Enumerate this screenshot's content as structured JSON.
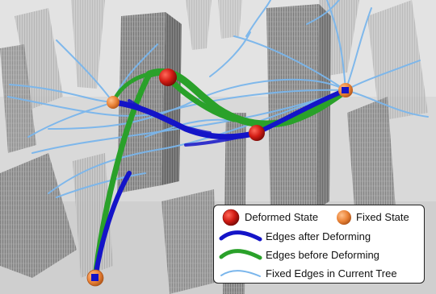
{
  "legend": {
    "deformed_state": "Deformed State",
    "fixed_state": "Fixed State",
    "edges_after": "Edges after Deforming",
    "edges_before": "Edges before Deforming",
    "fixed_edges": "Fixed Edges in Current Tree"
  },
  "colors": {
    "deformed_state": "#c8201a",
    "fixed_state": "#e8843a",
    "edges_after": "#1414c8",
    "edges_before": "#2aa12a",
    "fixed_edges": "#7ab6ec"
  }
}
